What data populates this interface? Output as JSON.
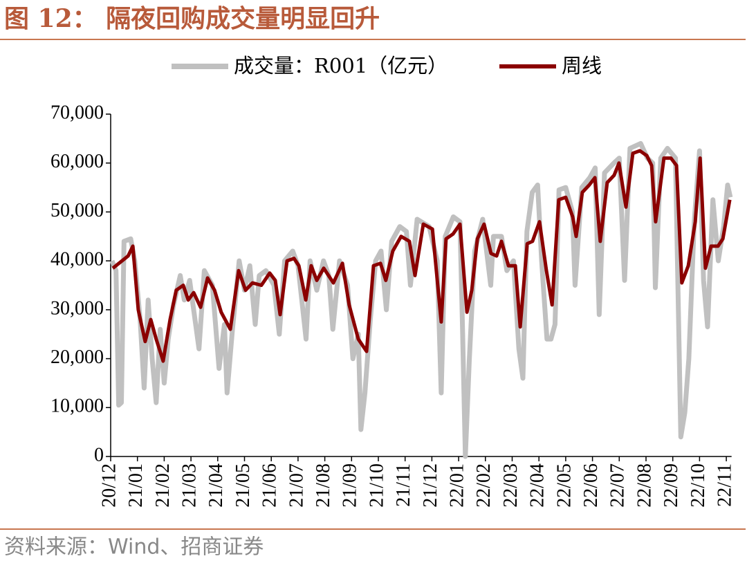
{
  "chart_data": {
    "type": "line",
    "title": "图 12： 隔夜回购成交量明显回升",
    "source": "资料来源：Wind、招商证券",
    "xlim": [
      0,
      23.3
    ],
    "xticks": [
      {
        "value": 0,
        "label": "20/12"
      },
      {
        "value": 1,
        "label": "21/01"
      },
      {
        "value": 2,
        "label": "21/02"
      },
      {
        "value": 3,
        "label": "21/03"
      },
      {
        "value": 4,
        "label": "21/04"
      },
      {
        "value": 5,
        "label": "21/05"
      },
      {
        "value": 6,
        "label": "21/06"
      },
      {
        "value": 7,
        "label": "21/07"
      },
      {
        "value": 8,
        "label": "21/08"
      },
      {
        "value": 9,
        "label": "21/09"
      },
      {
        "value": 10,
        "label": "21/10"
      },
      {
        "value": 11,
        "label": "21/11"
      },
      {
        "value": 12,
        "label": "21/12"
      },
      {
        "value": 13,
        "label": "22/01"
      },
      {
        "value": 14,
        "label": "22/02"
      },
      {
        "value": 15,
        "label": "22/03"
      },
      {
        "value": 16,
        "label": "22/04"
      },
      {
        "value": 17,
        "label": "22/05"
      },
      {
        "value": 18,
        "label": "22/06"
      },
      {
        "value": 19,
        "label": "22/07"
      },
      {
        "value": 20,
        "label": "22/08"
      },
      {
        "value": 21,
        "label": "22/09"
      },
      {
        "value": 22,
        "label": "22/10"
      },
      {
        "value": 23,
        "label": "22/11"
      }
    ],
    "ylim": [
      0,
      70000
    ],
    "yticks": [
      0,
      {
        "value": 10000,
        "label": "10,000"
      },
      {
        "value": 20000,
        "label": "20,000"
      },
      {
        "value": 30000,
        "label": "30,000"
      },
      {
        "value": 40000,
        "label": "40,000"
      },
      {
        "value": 50000,
        "label": "50,000"
      },
      {
        "value": 60000,
        "label": "60,000"
      },
      {
        "value": 70000,
        "label": "70,000"
      }
    ],
    "series": [
      {
        "name": "成交量：R001（亿元）",
        "color": "#c0c0c0",
        "width": 7,
        "x": [
          0.05,
          0.2,
          0.3,
          0.4,
          0.5,
          0.75,
          0.9,
          1.1,
          1.25,
          1.4,
          1.55,
          1.7,
          1.85,
          2.0,
          2.15,
          2.35,
          2.6,
          2.75,
          2.95,
          3.1,
          3.3,
          3.5,
          3.8,
          4.05,
          4.25,
          4.35,
          4.55,
          4.8,
          5.0,
          5.2,
          5.4,
          5.55,
          5.8,
          6.1,
          6.3,
          6.5,
          6.8,
          7.0,
          7.3,
          7.45,
          7.7,
          7.95,
          8.15,
          8.3,
          8.55,
          8.85,
          9.05,
          9.25,
          9.35,
          9.5,
          9.7,
          9.9,
          10.1,
          10.3,
          10.5,
          10.8,
          11.05,
          11.2,
          11.45,
          11.9,
          12.2,
          12.35,
          12.5,
          12.8,
          13.05,
          13.15,
          13.25,
          13.4,
          13.6,
          13.9,
          14.2,
          14.3,
          14.6,
          14.8,
          15.05,
          15.25,
          15.4,
          15.55,
          15.75,
          15.95,
          16.1,
          16.3,
          16.45,
          16.6,
          16.75,
          17.0,
          17.25,
          17.35,
          17.6,
          17.9,
          18.1,
          18.25,
          18.45,
          18.8,
          19.0,
          19.2,
          19.4,
          19.8,
          20.05,
          20.25,
          20.35,
          20.55,
          20.8,
          21.1,
          21.3,
          21.45,
          21.6,
          21.8,
          22.0,
          22.15,
          22.3,
          22.5,
          22.7,
          22.9,
          23.05,
          23.15
        ],
        "values": [
          40000,
          38000,
          10500,
          11000,
          44000,
          44500,
          40000,
          28000,
          14000,
          32000,
          20000,
          11000,
          26000,
          15000,
          24000,
          31000,
          37000,
          32000,
          36000,
          30000,
          22000,
          38000,
          35000,
          18000,
          27000,
          13000,
          26000,
          40000,
          34000,
          39000,
          27000,
          37000,
          38000,
          35000,
          25000,
          40000,
          42000,
          39000,
          24000,
          40000,
          34000,
          40000,
          37000,
          26000,
          40000,
          35000,
          20000,
          25000,
          5500,
          13000,
          28000,
          40000,
          42000,
          30000,
          44000,
          47000,
          46000,
          35000,
          48500,
          47000,
          40000,
          13000,
          45000,
          49000,
          48000,
          25000,
          0,
          20000,
          42000,
          48500,
          35000,
          45000,
          45000,
          38000,
          40000,
          22000,
          16000,
          46000,
          54000,
          55500,
          40000,
          24000,
          24000,
          27000,
          54500,
          55000,
          50000,
          35000,
          55000,
          57000,
          59000,
          29000,
          58000,
          60000,
          61000,
          36000,
          63000,
          64000,
          61000,
          60000,
          34500,
          61000,
          63000,
          61000,
          4000,
          9000,
          20000,
          48000,
          62500,
          36000,
          26500,
          52500,
          40000,
          47000,
          55500,
          53000
        ]
      },
      {
        "name": "周线",
        "color": "#8b0000",
        "width": 5,
        "x": [
          0.08,
          0.65,
          0.83,
          1.03,
          1.29,
          1.5,
          1.7,
          1.96,
          2.22,
          2.45,
          2.71,
          2.9,
          3.1,
          3.36,
          3.62,
          3.88,
          4.13,
          4.47,
          4.78,
          5.04,
          5.3,
          5.63,
          5.94,
          6.15,
          6.33,
          6.59,
          6.85,
          7.03,
          7.29,
          7.49,
          7.7,
          7.96,
          8.32,
          8.66,
          8.91,
          9.25,
          9.56,
          9.82,
          10.08,
          10.28,
          10.54,
          10.85,
          11.16,
          11.37,
          11.68,
          12.02,
          12.35,
          12.53,
          12.79,
          13.05,
          13.31,
          13.49,
          13.7,
          13.95,
          14.21,
          14.42,
          14.6,
          14.86,
          15.12,
          15.3,
          15.56,
          15.76,
          16.02,
          16.28,
          16.49,
          16.74,
          17.0,
          17.26,
          17.39,
          17.62,
          17.88,
          18.09,
          18.29,
          18.55,
          18.81,
          18.99,
          19.25,
          19.51,
          19.77,
          20.03,
          20.21,
          20.36,
          20.67,
          20.93,
          21.14,
          21.34,
          21.58,
          21.84,
          22.02,
          22.22,
          22.43,
          22.69,
          22.87,
          23.13
        ],
        "values": [
          38500,
          41000,
          43000,
          30000,
          23500,
          28000,
          24000,
          19500,
          28000,
          34000,
          35000,
          32000,
          33500,
          30500,
          36500,
          34000,
          29500,
          26000,
          38000,
          34000,
          35500,
          35000,
          37500,
          36000,
          29000,
          40000,
          40500,
          39000,
          32000,
          39000,
          36000,
          38500,
          35500,
          39500,
          31000,
          24000,
          21500,
          39000,
          39500,
          36000,
          42000,
          45000,
          44000,
          37000,
          47500,
          46500,
          27500,
          44500,
          45500,
          47500,
          29500,
          34000,
          44500,
          47500,
          41500,
          41000,
          44000,
          39000,
          39000,
          26500,
          43500,
          44000,
          48000,
          38000,
          31000,
          52500,
          53000,
          49000,
          45000,
          54000,
          55500,
          57000,
          44000,
          56000,
          57500,
          60000,
          51000,
          62000,
          62500,
          61500,
          59500,
          48000,
          61000,
          61000,
          59500,
          35500,
          39000,
          48000,
          61000,
          38500,
          43000,
          43000,
          44500,
          52500
        ]
      }
    ]
  }
}
